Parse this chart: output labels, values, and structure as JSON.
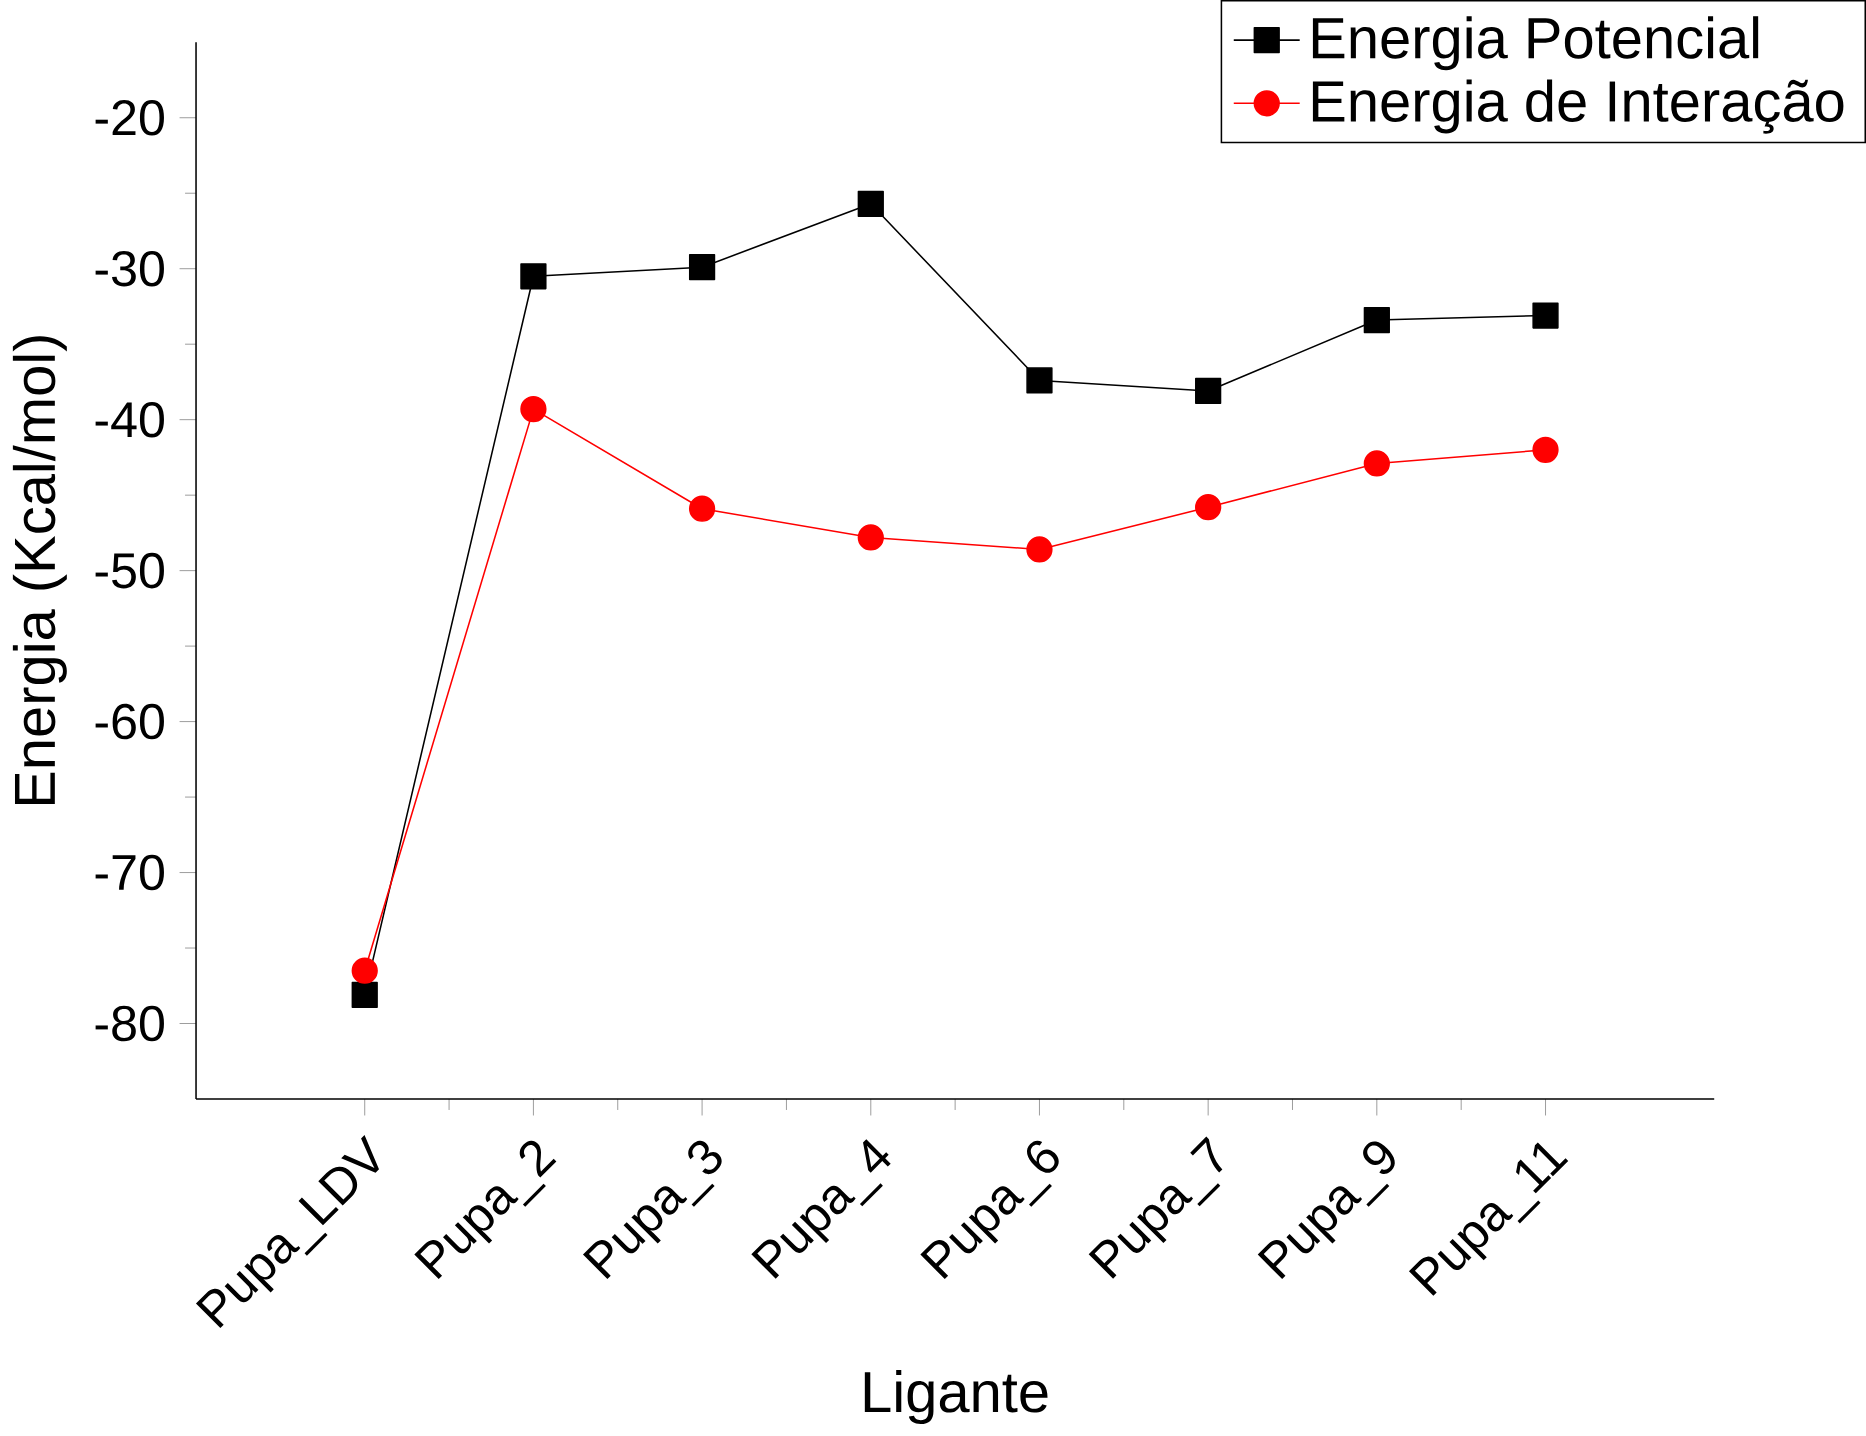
{
  "chart_data": {
    "type": "line",
    "xlabel": "Ligante",
    "ylabel": "Energia (Kcal/mol)",
    "categories": [
      "Pupa_LDV",
      "Pupa_2",
      "Pupa_3",
      "Pupa_4",
      "Pupa_6",
      "Pupa_7",
      "Pupa_9",
      "Pupa_11"
    ],
    "series": [
      {
        "name": "Energia Potencial",
        "color": "#000000",
        "marker": "square",
        "values": [
          -78.1,
          -30.5,
          -29.9,
          -25.7,
          -37.4,
          -38.1,
          -33.4,
          -33.1
        ]
      },
      {
        "name": "Energia de Interação",
        "color": "#ff0000",
        "marker": "circle",
        "values": [
          -76.5,
          -39.3,
          -45.9,
          -47.8,
          -48.6,
          -45.8,
          -42.9,
          -42.0
        ]
      }
    ],
    "ylim": [
      -85,
      -15
    ],
    "yticks": [
      -80,
      -70,
      -60,
      -50,
      -40,
      -30,
      -20
    ],
    "legend": "top right",
    "grid": false
  }
}
